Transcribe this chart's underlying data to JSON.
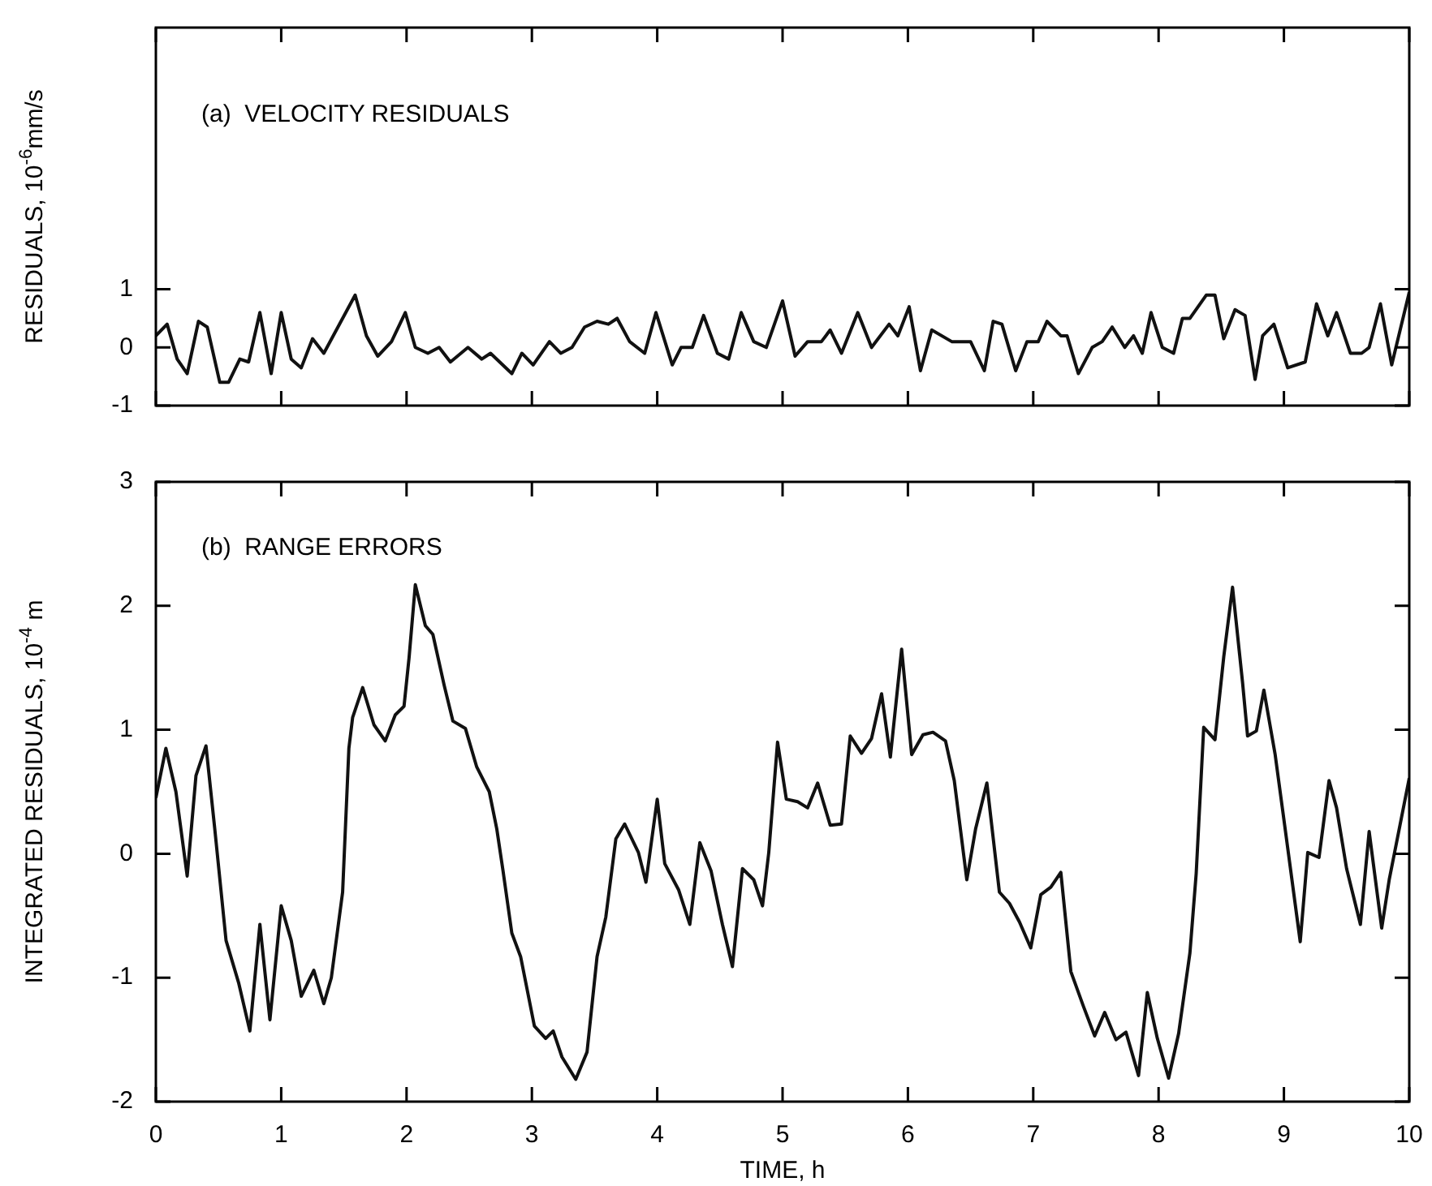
{
  "chart_data": [
    {
      "type": "line",
      "title": "(a)  VELOCITY RESIDUALS",
      "ylabel": "RESIDUALS, 10$^{-6}$mm/s",
      "xlim": [
        0,
        10
      ],
      "xticks": [
        0,
        1,
        2,
        3,
        4,
        5,
        6,
        7,
        8,
        9,
        10
      ],
      "ylim": [
        -1,
        5.5
      ],
      "yticks": [
        -1,
        0,
        1
      ],
      "tick_labels": "y",
      "marker": "none",
      "series": [
        {
          "color": "#111111",
          "x": [
            0,
            0.09,
            0.17,
            0.25,
            0.34,
            0.41,
            0.51,
            0.58,
            0.67,
            0.74,
            0.83,
            0.92,
            1.0,
            1.08,
            1.16,
            1.25,
            1.34,
            1.59,
            1.68,
            1.77,
            1.88,
            1.99,
            2.07,
            2.17,
            2.26,
            2.35,
            2.49,
            2.6,
            2.67,
            2.84,
            2.92,
            3.01,
            3.14,
            3.23,
            3.32,
            3.42,
            3.52,
            3.61,
            3.68,
            3.78,
            3.9,
            3.99,
            4.12,
            4.19,
            4.28,
            4.37,
            4.48,
            4.57,
            4.67,
            4.77,
            4.87,
            5.0,
            5.1,
            5.2,
            5.31,
            5.38,
            5.47,
            5.6,
            5.71,
            5.85,
            5.92,
            6.01,
            6.1,
            6.19,
            6.35,
            6.5,
            6.61,
            6.68,
            6.75,
            6.86,
            6.95,
            7.04,
            7.11,
            7.22,
            7.27,
            7.36,
            7.47,
            7.55,
            7.63,
            7.73,
            7.8,
            7.87,
            7.94,
            8.03,
            8.12,
            8.19,
            8.25,
            8.38,
            8.45,
            8.52,
            8.61,
            8.69,
            8.77,
            8.83,
            8.92,
            9.03,
            9.17,
            9.26,
            9.35,
            9.42,
            9.53,
            9.62,
            9.68,
            9.77,
            9.86,
            10
          ],
          "values": [
            0.2,
            0.4,
            -0.2,
            -0.45,
            0.45,
            0.35,
            -0.6,
            -0.6,
            -0.2,
            -0.25,
            0.6,
            -0.45,
            0.6,
            -0.2,
            -0.35,
            0.15,
            -0.1,
            0.9,
            0.2,
            -0.15,
            0.1,
            0.6,
            0,
            -0.1,
            0,
            -0.25,
            0,
            -0.2,
            -0.1,
            -0.45,
            -0.1,
            -0.3,
            0.1,
            -0.1,
            0,
            0.35,
            0.45,
            0.4,
            0.5,
            0.1,
            -0.1,
            0.6,
            -0.3,
            0,
            0,
            0.55,
            -0.1,
            -0.2,
            0.6,
            0.1,
            0,
            0.8,
            -0.15,
            0.1,
            0.1,
            0.3,
            -0.1,
            0.6,
            0,
            0.4,
            0.2,
            0.7,
            -0.4,
            0.3,
            0.1,
            0.1,
            -0.4,
            0.45,
            0.4,
            -0.4,
            0.1,
            0.1,
            0.45,
            0.2,
            0.2,
            -0.45,
            0,
            0.1,
            0.35,
            0,
            0.2,
            -0.1,
            0.6,
            0,
            -0.1,
            0.5,
            0.5,
            0.9,
            0.9,
            0.15,
            0.65,
            0.55,
            -0.55,
            0.2,
            0.4,
            -0.35,
            -0.25,
            0.75,
            0.2,
            0.6,
            -0.1,
            -0.1,
            0,
            0.75,
            -0.3,
            0.95
          ]
        }
      ]
    },
    {
      "type": "line",
      "title": "(b)  RANGE ERRORS",
      "ylabel": "INTEGRATED RESIDUALS, 10$^{-4}$ m",
      "xlabel": "TIME, h",
      "xlim": [
        0,
        10
      ],
      "xticks": [
        0,
        1,
        2,
        3,
        4,
        5,
        6,
        7,
        8,
        9,
        10
      ],
      "ylim": [
        -2,
        3
      ],
      "yticks": [
        -2,
        -1,
        0,
        1,
        2,
        3
      ],
      "marker": "none",
      "series": [
        {
          "color": "#111111",
          "x": [
            0,
            0.08,
            0.16,
            0.25,
            0.32,
            0.4,
            0.47,
            0.56,
            0.66,
            0.75,
            0.83,
            0.91,
            1.0,
            1.08,
            1.16,
            1.26,
            1.34,
            1.4,
            1.49,
            1.54,
            1.57,
            1.65,
            1.74,
            1.83,
            1.91,
            1.98,
            2.02,
            2.07,
            2.15,
            2.21,
            2.3,
            2.37,
            2.47,
            2.56,
            2.66,
            2.72,
            2.77,
            2.84,
            2.91,
            3.02,
            3.11,
            3.17,
            3.24,
            3.35,
            3.44,
            3.52,
            3.59,
            3.67,
            3.74,
            3.85,
            3.91,
            4.0,
            4.06,
            4.17,
            4.26,
            4.34,
            4.43,
            4.52,
            4.6,
            4.68,
            4.77,
            4.84,
            4.89,
            4.93,
            4.96,
            5.03,
            5.12,
            5.2,
            5.28,
            5.38,
            5.47,
            5.54,
            5.63,
            5.71,
            5.79,
            5.86,
            5.95,
            6.03,
            6.12,
            6.2,
            6.3,
            6.37,
            6.47,
            6.54,
            6.63,
            6.73,
            6.81,
            6.89,
            6.98,
            7.06,
            7.14,
            7.22,
            7.3,
            7.4,
            7.49,
            7.57,
            7.66,
            7.74,
            7.84,
            7.91,
            7.99,
            8.08,
            8.16,
            8.25,
            8.3,
            8.36,
            8.45,
            8.52,
            8.59,
            8.67,
            8.71,
            8.78,
            8.84,
            8.93,
            8.99,
            9.13,
            9.19,
            9.28,
            9.36,
            9.42,
            9.5,
            9.61,
            9.68,
            9.78,
            9.84,
            10
          ],
          "values": [
            0.45,
            0.85,
            0.5,
            -0.18,
            0.63,
            0.87,
            0.2,
            -0.7,
            -1.04,
            -1.43,
            -0.57,
            -1.34,
            -0.42,
            -0.7,
            -1.15,
            -0.94,
            -1.21,
            -1.0,
            -0.31,
            0.85,
            1.1,
            1.34,
            1.04,
            0.91,
            1.12,
            1.19,
            1.58,
            2.17,
            1.84,
            1.77,
            1.36,
            1.07,
            1.01,
            0.7,
            0.5,
            0.2,
            -0.14,
            -0.64,
            -0.83,
            -1.39,
            -1.49,
            -1.43,
            -1.64,
            -1.82,
            -1.6,
            -0.83,
            -0.51,
            0.12,
            0.24,
            0.01,
            -0.23,
            0.44,
            -0.08,
            -0.29,
            -0.57,
            0.09,
            -0.14,
            -0.57,
            -0.91,
            -0.12,
            -0.21,
            -0.42,
            0.01,
            0.52,
            0.9,
            0.44,
            0.42,
            0.37,
            0.57,
            0.23,
            0.24,
            0.95,
            0.81,
            0.93,
            1.29,
            0.78,
            1.65,
            0.8,
            0.96,
            0.98,
            0.91,
            0.59,
            -0.21,
            0.2,
            0.57,
            -0.31,
            -0.4,
            -0.55,
            -0.76,
            -0.33,
            -0.27,
            -0.15,
            -0.95,
            -1.23,
            -1.47,
            -1.28,
            -1.5,
            -1.44,
            -1.79,
            -1.12,
            -1.49,
            -1.81,
            -1.45,
            -0.8,
            -0.16,
            1.02,
            0.92,
            1.59,
            2.15,
            1.38,
            0.95,
            0.99,
            1.32,
            0.8,
            0.35,
            -0.71,
            0.01,
            -0.03,
            0.59,
            0.37,
            -0.12,
            -0.57,
            0.18,
            -0.6,
            -0.21,
            0.61
          ]
        }
      ]
    }
  ]
}
